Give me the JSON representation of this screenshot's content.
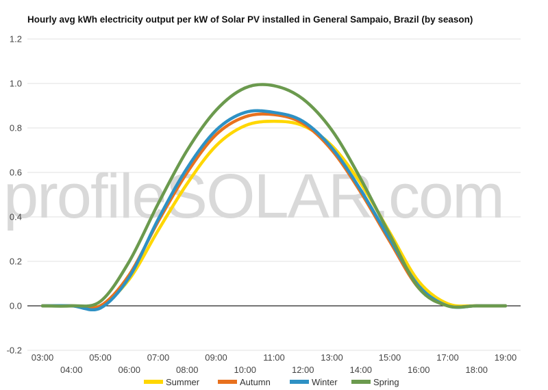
{
  "chart_data": {
    "type": "line",
    "title": "Hourly avg kWh electricity output per kW of Solar PV installed in General Sampaio, Brazil (by season)",
    "xlabel": "",
    "ylabel": "",
    "ylim": [
      -0.2,
      1.2
    ],
    "yticks": [
      "-0.2",
      "0.0",
      "0.2",
      "0.4",
      "0.6",
      "0.8",
      "1.0",
      "1.2"
    ],
    "ytick_values": [
      -0.2,
      0,
      0.2,
      0.4,
      0.6,
      0.8,
      1.0,
      1.2
    ],
    "x": [
      "03:00",
      "04:00",
      "05:00",
      "06:00",
      "07:00",
      "08:00",
      "09:00",
      "10:00",
      "11:00",
      "12:00",
      "13:00",
      "14:00",
      "15:00",
      "16:00",
      "17:00",
      "18:00",
      "19:00"
    ],
    "grid": true,
    "legend": "bottom",
    "watermark": "profileSOLAR.com",
    "series": [
      {
        "name": "Summer",
        "color": "#FFD700",
        "values": [
          0,
          0,
          0,
          0.12,
          0.34,
          0.55,
          0.72,
          0.81,
          0.83,
          0.81,
          0.72,
          0.55,
          0.33,
          0.11,
          0.01,
          0,
          0
        ]
      },
      {
        "name": "Autumn",
        "color": "#E8711E",
        "values": [
          0,
          0,
          0,
          0.14,
          0.38,
          0.6,
          0.77,
          0.85,
          0.86,
          0.82,
          0.7,
          0.51,
          0.29,
          0.08,
          0,
          0,
          0
        ]
      },
      {
        "name": "Winter",
        "color": "#2E91C4",
        "values": [
          0,
          0,
          -0.01,
          0.13,
          0.39,
          0.62,
          0.79,
          0.87,
          0.87,
          0.83,
          0.71,
          0.52,
          0.3,
          0.09,
          0,
          0,
          0
        ]
      },
      {
        "name": "Spring",
        "color": "#6B9A4E",
        "values": [
          0,
          0,
          0.02,
          0.2,
          0.46,
          0.7,
          0.88,
          0.98,
          0.99,
          0.93,
          0.79,
          0.57,
          0.32,
          0.08,
          0,
          0,
          0
        ]
      }
    ]
  }
}
